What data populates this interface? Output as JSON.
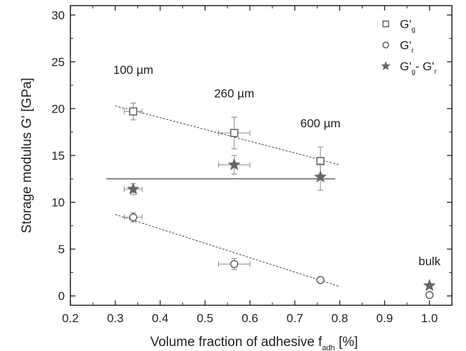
{
  "chart_data": {
    "type": "scatter",
    "xlabel": {
      "main": "Volume fraction of adhesive f",
      "sub": "adh",
      "unit": " [%]"
    },
    "ylabel": "Storage modulus G' [GPa]",
    "xlim": [
      0.2,
      1.05
    ],
    "ylim": [
      -1,
      31
    ],
    "xticks": [
      "0.2",
      "0.3",
      "0.4",
      "0.5",
      "0.6",
      "0.7",
      "0.8",
      "0.9",
      "1.0"
    ],
    "yticks": [
      "0",
      "5",
      "10",
      "15",
      "20",
      "25",
      "30"
    ],
    "grid": false,
    "legend_position": "top-right",
    "series": [
      {
        "legend": {
          "base": "G'",
          "sub": "g",
          "rest": ""
        },
        "marker": "square",
        "color": "#555555",
        "points": [
          {
            "x": 0.34,
            "y": 19.7,
            "xerr": 0.02,
            "yerr": 0.9
          },
          {
            "x": 0.565,
            "y": 17.4,
            "xerr": 0.035,
            "yerr": 1.7
          },
          {
            "x": 0.757,
            "y": 14.4,
            "xerr": 0.005,
            "yerr": 1.5
          }
        ]
      },
      {
        "legend": {
          "base": "G'",
          "sub": "r",
          "rest": ""
        },
        "marker": "circle",
        "color": "#555555",
        "points": [
          {
            "x": 0.34,
            "y": 8.4,
            "xerr": 0.02,
            "yerr": 0.5
          },
          {
            "x": 0.565,
            "y": 3.4,
            "xerr": 0.035,
            "yerr": 0.6
          },
          {
            "x": 0.757,
            "y": 1.7,
            "xerr": 0.005,
            "yerr": 0.2
          },
          {
            "x": 1.0,
            "y": 0.1,
            "xerr": 0.0,
            "yerr": 0.0
          }
        ]
      },
      {
        "legend": {
          "base": "G'",
          "sub": "g",
          "rest": "- G'",
          "sub2": "r"
        },
        "marker": "star",
        "color": "#666666",
        "points": [
          {
            "x": 0.34,
            "y": 11.4,
            "xerr": 0.02,
            "yerr": 0.6
          },
          {
            "x": 0.565,
            "y": 14.0,
            "xerr": 0.035,
            "yerr": 1.0
          },
          {
            "x": 0.757,
            "y": 12.7,
            "xerr": 0.005,
            "yerr": 1.4
          },
          {
            "x": 1.0,
            "y": 1.1,
            "xerr": 0.0,
            "yerr": 0.0
          }
        ]
      }
    ],
    "lines": [
      {
        "style": "dotted",
        "x1": 0.3,
        "y1": 20.3,
        "x2": 0.8,
        "y2": 14.0
      },
      {
        "style": "dotted",
        "x1": 0.3,
        "y1": 8.7,
        "x2": 0.8,
        "y2": 1.0
      },
      {
        "style": "solid",
        "x1": 0.28,
        "y1": 12.5,
        "x2": 0.79,
        "y2": 12.5
      }
    ],
    "annotations": [
      {
        "text": "100 µm",
        "x": 0.34,
        "y": 23.7
      },
      {
        "text": "260 µm",
        "x": 0.565,
        "y": 21.2
      },
      {
        "text": "600 µm",
        "x": 0.757,
        "y": 18.0
      },
      {
        "text": "bulk",
        "x": 1.0,
        "y": 3.3
      }
    ]
  }
}
